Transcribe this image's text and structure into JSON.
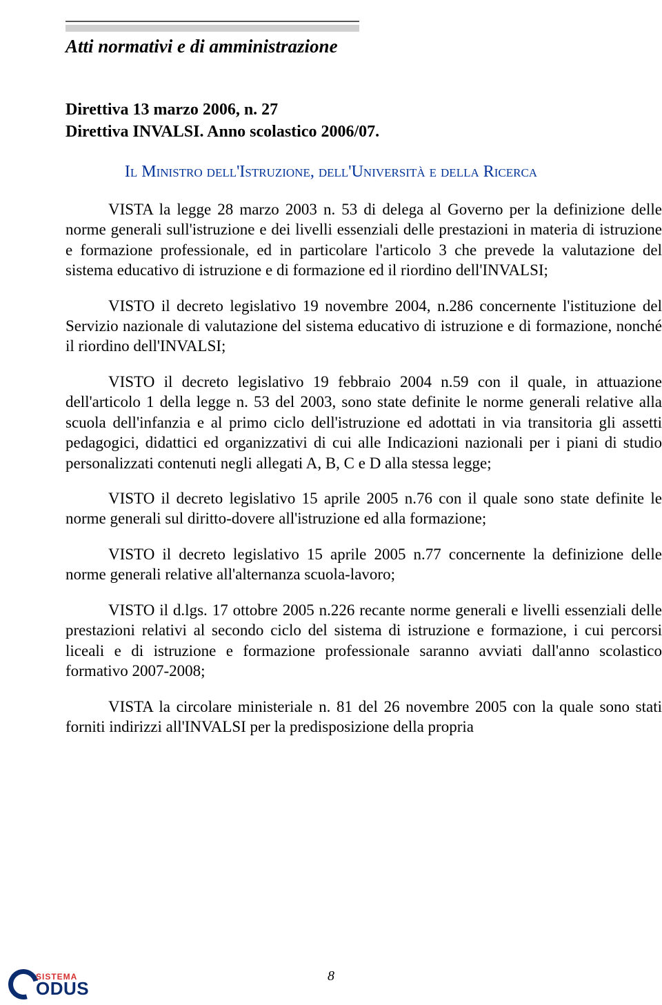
{
  "colors": {
    "text": "#000000",
    "authority": "#003399",
    "rule_dark": "#555555",
    "rule_light": "#d0d0d0",
    "logo_blue": "#0b2d6f",
    "logo_red": "#d62f2f",
    "background": "#ffffff"
  },
  "typography": {
    "body_family": "Times New Roman",
    "body_size_pt": 17,
    "title_size_pt": 20,
    "authority_smallcaps": true
  },
  "header": {
    "section_title": "Atti normativi e di amministrazione",
    "doc_title_line1": "Direttiva 13 marzo 2006, n. 27",
    "doc_title_line2": "Direttiva INVALSI. Anno scolastico 2006/07.",
    "authority": "Il Ministro dell'Istruzione, dell'Università e della Ricerca"
  },
  "paragraphs": {
    "p1": "VISTA la legge 28 marzo 2003 n. 53 di delega al Governo per la definizione delle norme generali sull'istruzione e dei livelli essenziali delle prestazioni in materia di istruzione e formazione professionale, ed in particolare l'articolo 3 che prevede la valutazione del sistema educativo di istruzione e di formazione ed il riordino dell'INVALSI;",
    "p2": "VISTO il decreto legislativo 19 novembre 2004, n.286 concernente l'istituzione del Servizio nazionale di valutazione del sistema educativo di istruzione e di formazione, nonché il riordino dell'INVALSI;",
    "p3": "VISTO il decreto legislativo 19 febbraio 2004 n.59 con il quale, in attuazione dell'articolo 1 della legge n. 53 del 2003, sono state definite le norme generali relative alla scuola dell'infanzia e al primo ciclo dell'istruzione ed adottati in via transitoria gli assetti pedagogici, didattici ed organizzativi di cui alle Indicazioni nazionali per i piani di studio personalizzati contenuti negli allegati A, B, C e D alla stessa legge;",
    "p4": "VISTO il decreto legislativo 15 aprile 2005 n.76 con il quale sono state definite le norme generali sul diritto-dovere all'istruzione ed alla formazione;",
    "p5": "VISTO il decreto legislativo 15 aprile 2005 n.77 concernente la definizione delle norme generali relative all'alternanza scuola-lavoro;",
    "p6": "VISTO il d.lgs. 17 ottobre 2005 n.226 recante norme generali e livelli essenziali delle prestazioni relativi al secondo ciclo del sistema di istruzione e formazione, i cui percorsi liceali e di istruzione e formazione professionale saranno avviati dall'anno scolastico formativo 2007-2008;",
    "p7": "VISTA la circolare ministeriale n. 81 del 26 novembre 2005 con la quale sono stati forniti indirizzi all'INVALSI per la predisposizione della propria"
  },
  "page_number": "8",
  "logo": {
    "line1": "SISTEMA",
    "line2": "ODUS"
  }
}
